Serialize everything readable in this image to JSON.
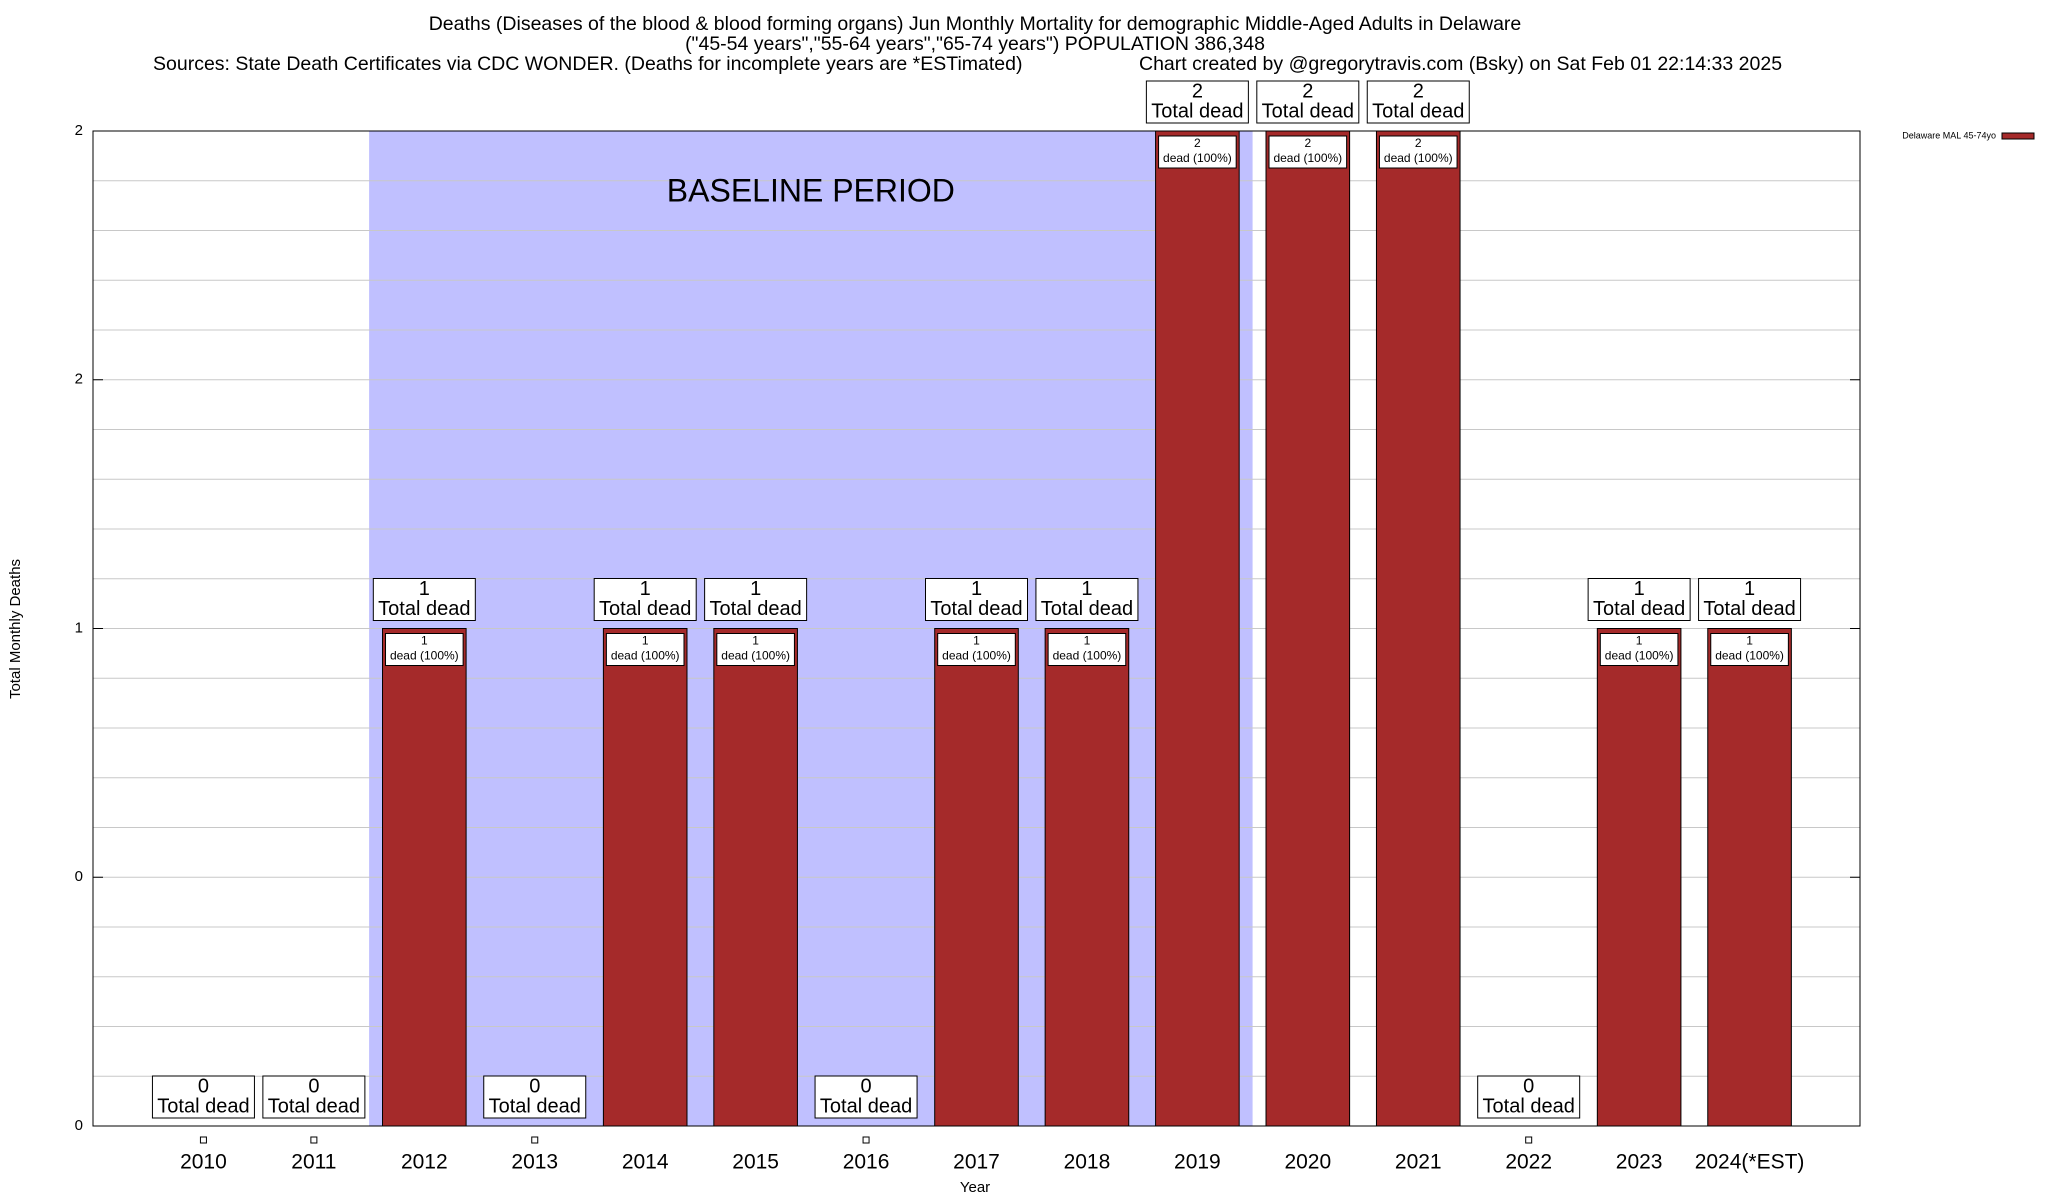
{
  "chart_data": {
    "type": "bar",
    "title": [
      "Deaths (Diseases of the blood & blood forming organs) Jun Monthly Mortality for demographic Middle-Aged Adults in Delaware",
      "(\"45-54 years\",\"55-64 years\",\"65-74 years\") POPULATION 386,348"
    ],
    "source": "Sources: State Death Certificates via CDC WONDER. (Deaths for incomplete years are *ESTimated)",
    "credit": "Chart created by @gregorytravis.com (Bsky) on Sat Feb 01 22:14:33 2025",
    "x_label": "Year",
    "y_label": "Total Monthly Deaths",
    "categories": [
      "2010",
      "2011",
      "2012",
      "2013",
      "2014",
      "2015",
      "2016",
      "2017",
      "2018",
      "2019",
      "2020",
      "2021",
      "2022",
      "2023",
      "2024(*EST)"
    ],
    "series": [
      {
        "name": "Delaware MAL 45-74yo",
        "color": "#a52a2a",
        "values": [
          0,
          0,
          1,
          0,
          1,
          1,
          0,
          1,
          1,
          2,
          2,
          2,
          0,
          1,
          1
        ]
      }
    ],
    "total_label": "Total dead",
    "share_label": "dead (100%)",
    "baseline": {
      "label": "BASELINE PERIOD",
      "from": "2012",
      "to": "2019",
      "color": "#c0c0ff"
    },
    "ylim": [
      0,
      2
    ],
    "yticks": [
      0,
      {
        "value": 0.5,
        "label": "0"
      },
      1,
      {
        "value": 1.5,
        "label": "2"
      },
      2
    ],
    "minor_yticks": [
      0.1,
      0.2,
      0.3,
      0.4,
      0.6,
      0.7,
      0.8,
      0.9,
      1.1,
      1.2,
      1.3,
      1.4,
      1.6,
      1.7,
      1.8,
      1.9
    ],
    "grid": true,
    "legend": "top-right"
  }
}
